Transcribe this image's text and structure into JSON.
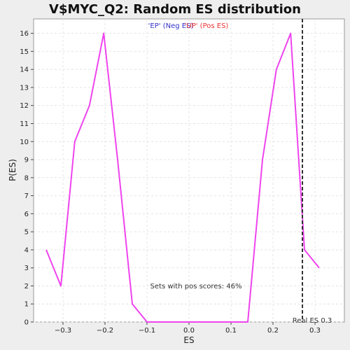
{
  "chart_data": {
    "type": "line",
    "title": "V$MYC_Q2: Random ES distribution",
    "xlabel": "ES",
    "ylabel": "P(ES)",
    "xlim": [
      -0.37,
      0.37
    ],
    "ylim": [
      0,
      16.8
    ],
    "x_ticks": [
      -0.3,
      -0.2,
      -0.1,
      0.0,
      0.1,
      0.2,
      0.3
    ],
    "x_tick_labels": [
      "−0.3",
      "−0.2",
      "−0.1",
      "0.0",
      "0.1",
      "0.2",
      "0.3"
    ],
    "y_ticks": [
      0,
      1,
      2,
      3,
      4,
      5,
      6,
      7,
      8,
      9,
      10,
      11,
      12,
      13,
      14,
      15,
      16
    ],
    "y_tick_labels": [
      "0",
      "1",
      "2",
      "3",
      "4",
      "5",
      "6",
      "7",
      "8",
      "9",
      "10",
      "11",
      "12",
      "13",
      "14",
      "15",
      "16"
    ],
    "grid": true,
    "series": [
      {
        "color": "#ee44ee",
        "x": [
          -0.34,
          -0.305,
          -0.272,
          -0.237,
          -0.203,
          -0.17,
          -0.135,
          -0.1,
          -0.065,
          -0.032,
          0.003,
          0.038,
          0.072,
          0.107,
          0.14,
          0.175,
          0.208,
          0.242,
          0.275,
          0.31
        ],
        "y": [
          4,
          2,
          10,
          12,
          16,
          9,
          1,
          0,
          0,
          0,
          0,
          0,
          0,
          0,
          0,
          9,
          14,
          16,
          4,
          3
        ]
      }
    ],
    "legend": [
      {
        "text": "'EP' (Neg ES)",
        "color": "#3333cc"
      },
      {
        "text": "'UP' (Pos ES)",
        "color": "#ee3333"
      }
    ],
    "legend_position": "top-center",
    "real_es": {
      "value": 0.27,
      "label": "Real ES 0.3"
    },
    "annotation": "Sets with pos scores: 46%"
  },
  "colors": {
    "background": "#eeeeee",
    "plot_background": "#ffffff",
    "grid": "#e4e4e4",
    "line": "#ee44ee"
  }
}
